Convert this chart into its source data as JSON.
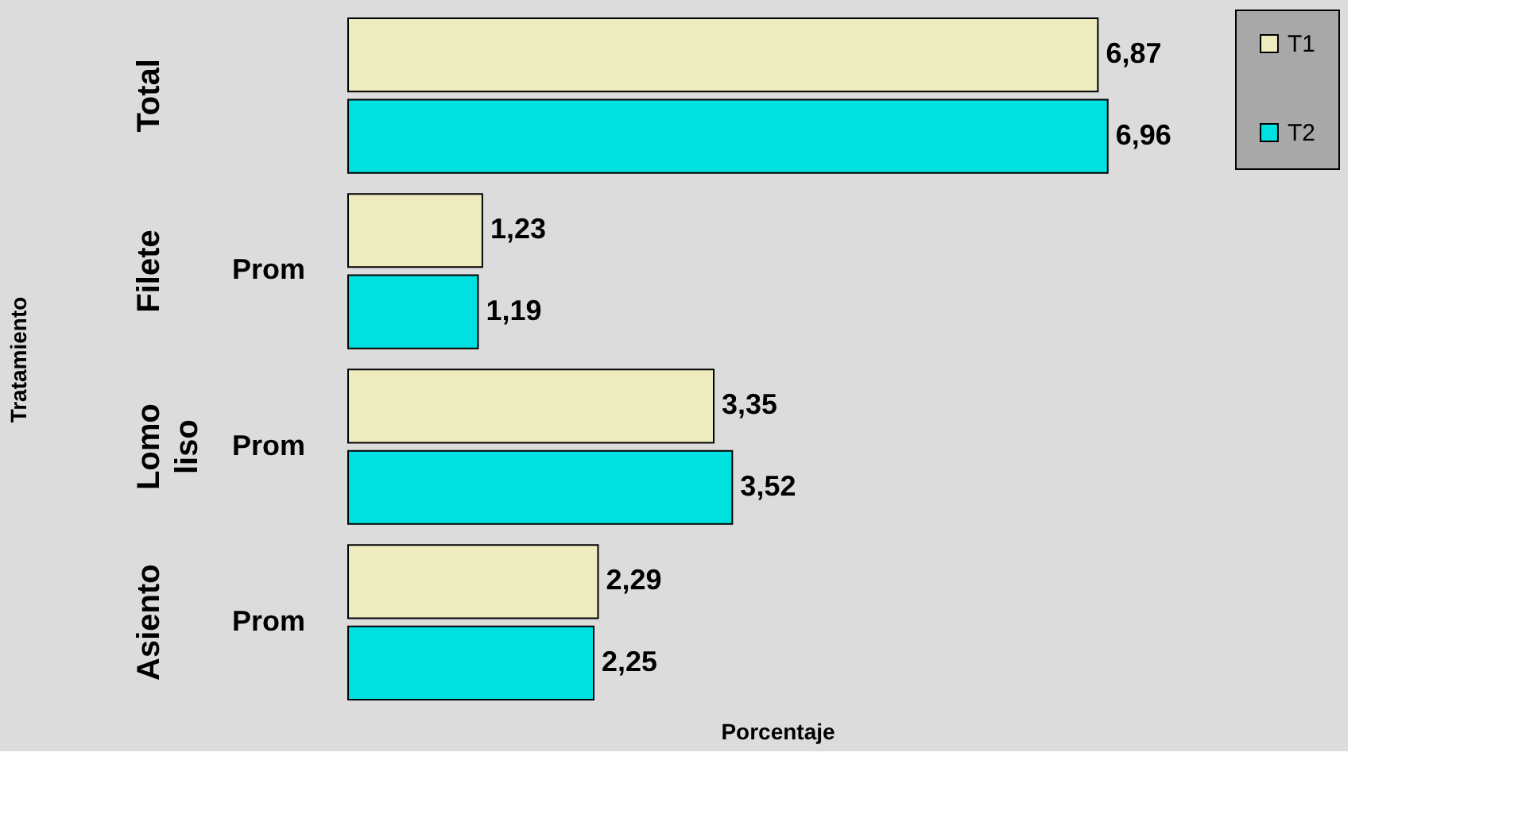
{
  "chart_data": {
    "type": "bar",
    "orientation": "horizontal",
    "xlabel": "Porcentaje",
    "ylabel": "Tratamiento",
    "categories": [
      "Total",
      "Filete",
      "Lomo liso",
      "Asiento"
    ],
    "annotations": [
      "Prom",
      "Prom",
      "Prom"
    ],
    "series": [
      {
        "name": "T1",
        "color": "#eeecbe",
        "values": [
          6.87,
          1.23,
          3.35,
          2.29
        ],
        "value_labels": [
          "6,87",
          "1,23",
          "3,35",
          "2,29"
        ]
      },
      {
        "name": "T2",
        "color": "#00e0e0",
        "values": [
          6.96,
          1.19,
          3.52,
          2.25
        ],
        "value_labels": [
          "6,96",
          "1,19",
          "3,52",
          "2,25"
        ]
      }
    ],
    "legend": "right"
  }
}
